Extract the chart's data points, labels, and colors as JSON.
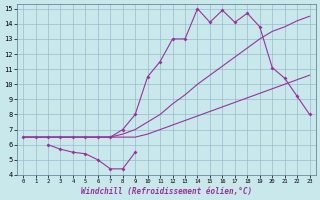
{
  "xlabel": "Windchill (Refroidissement éolien,°C)",
  "ylim": [
    4,
    15
  ],
  "xlim": [
    -0.5,
    23.5
  ],
  "bg_color": "#c8e8ec",
  "line_color": "#993399",
  "grid_color": "#99bbcc",
  "s1_x": [
    0,
    1,
    2,
    3,
    4,
    5,
    6,
    7,
    8,
    9,
    10,
    11,
    12,
    13,
    14,
    15,
    16,
    17,
    18,
    19,
    20,
    21,
    22,
    23
  ],
  "s1_y": [
    6.5,
    6.5,
    6.5,
    6.5,
    6.5,
    6.5,
    6.5,
    6.5,
    6.5,
    6.5,
    6.7,
    7.0,
    7.3,
    7.6,
    7.9,
    8.2,
    8.5,
    8.8,
    9.1,
    9.4,
    9.7,
    10.0,
    10.3,
    10.6
  ],
  "s2_x": [
    0,
    1,
    2,
    3,
    4,
    5,
    6,
    7,
    8,
    9,
    10,
    11,
    12,
    13,
    14,
    15,
    16,
    17,
    18,
    19,
    20,
    21,
    22,
    23
  ],
  "s2_y": [
    6.5,
    6.5,
    6.5,
    6.5,
    6.5,
    6.5,
    6.5,
    6.5,
    6.7,
    7.0,
    7.5,
    8.0,
    8.7,
    9.3,
    10.0,
    10.6,
    11.2,
    11.8,
    12.4,
    13.0,
    13.5,
    13.8,
    14.2,
    14.5
  ],
  "s3_x": [
    0,
    1,
    2,
    3,
    4,
    5,
    6,
    7,
    8,
    9,
    10,
    11,
    12,
    13,
    14,
    15,
    16,
    17,
    18,
    19,
    20,
    21,
    22,
    23
  ],
  "s3_y": [
    6.5,
    6.5,
    6.5,
    6.5,
    6.5,
    6.5,
    6.5,
    6.5,
    7.0,
    8.0,
    10.5,
    11.5,
    13.0,
    13.0,
    15.0,
    14.1,
    14.9,
    14.1,
    14.7,
    13.8,
    11.1,
    10.4,
    9.2,
    8.0
  ],
  "s4_x": [
    2,
    3,
    4,
    5,
    6,
    7,
    8,
    9
  ],
  "s4_y": [
    6.0,
    5.7,
    5.5,
    5.4,
    5.0,
    4.4,
    4.4,
    5.5
  ]
}
